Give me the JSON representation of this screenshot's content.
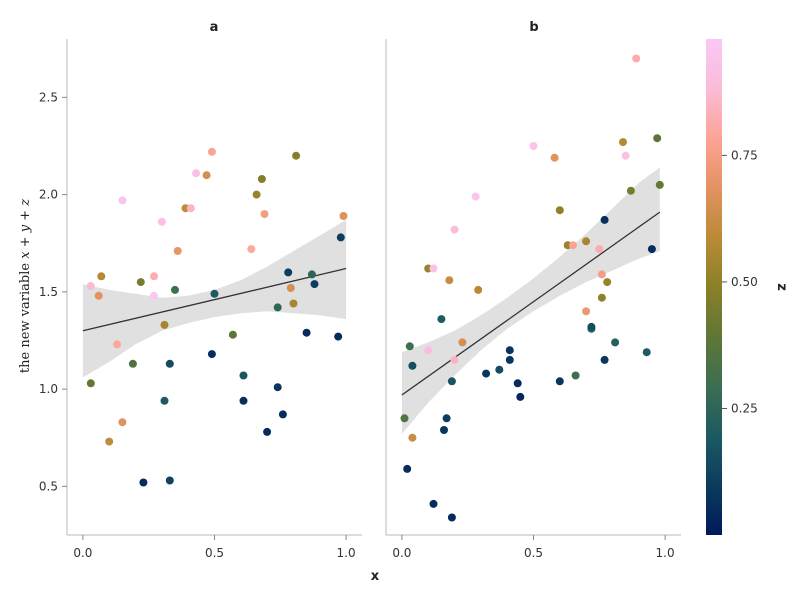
{
  "chart_data": {
    "type": "scatter",
    "xlabel": "x",
    "ylabel_prefix": "the new variable ",
    "ylabel_math": "x + y + z",
    "xlim": [
      -0.03,
      1.03
    ],
    "ylim": [
      0.25,
      2.8
    ],
    "xticks": [
      0.0,
      0.5,
      1.0
    ],
    "xtick_labels": [
      "0.0",
      "0.5",
      "1.0"
    ],
    "yticks": [
      0.5,
      1.0,
      1.5,
      2.0,
      2.5
    ],
    "ytick_labels": [
      "0.5",
      "1.0",
      "1.5",
      "2.0",
      "2.5"
    ],
    "colorbar": {
      "label": "z",
      "range": [
        0.0,
        0.98
      ],
      "ticks": [
        0.25,
        0.5,
        0.75
      ],
      "tick_labels": [
        "0.25",
        "0.50",
        "0.75"
      ],
      "colormap": "batlow",
      "stops": [
        "#011959",
        "#0b3c5e",
        "#1c5a62",
        "#3c6e52",
        "#5f7736",
        "#8a8028",
        "#bb8a36",
        "#e39262",
        "#fca496",
        "#fbbbd8",
        "#fac8f6"
      ]
    },
    "panels": [
      {
        "title": "a",
        "fit": {
          "x0": 0.0,
          "y0": 1.3,
          "x1": 1.0,
          "y1": 1.62
        },
        "band": [
          {
            "x": 0.0,
            "lo": 1.06,
            "hi": 1.54
          },
          {
            "x": 0.1,
            "lo": 1.14,
            "hi": 1.51
          },
          {
            "x": 0.2,
            "lo": 1.23,
            "hi": 1.49
          },
          {
            "x": 0.3,
            "lo": 1.3,
            "hi": 1.47
          },
          {
            "x": 0.4,
            "lo": 1.34,
            "hi": 1.48
          },
          {
            "x": 0.5,
            "lo": 1.37,
            "hi": 1.51
          },
          {
            "x": 0.6,
            "lo": 1.39,
            "hi": 1.56
          },
          {
            "x": 0.7,
            "lo": 1.4,
            "hi": 1.63
          },
          {
            "x": 0.8,
            "lo": 1.39,
            "hi": 1.71
          },
          {
            "x": 0.9,
            "lo": 1.38,
            "hi": 1.79
          },
          {
            "x": 1.0,
            "lo": 1.36,
            "hi": 1.87
          }
        ],
        "points": [
          {
            "x": 0.03,
            "y": 1.53,
            "z": 0.88
          },
          {
            "x": 0.06,
            "y": 1.48,
            "z": 0.68
          },
          {
            "x": 0.07,
            "y": 1.58,
            "z": 0.58
          },
          {
            "x": 0.03,
            "y": 1.03,
            "z": 0.4
          },
          {
            "x": 0.1,
            "y": 0.73,
            "z": 0.6
          },
          {
            "x": 0.13,
            "y": 1.23,
            "z": 0.8
          },
          {
            "x": 0.15,
            "y": 0.83,
            "z": 0.68
          },
          {
            "x": 0.15,
            "y": 1.97,
            "z": 0.95
          },
          {
            "x": 0.19,
            "y": 1.13,
            "z": 0.35
          },
          {
            "x": 0.22,
            "y": 1.55,
            "z": 0.45
          },
          {
            "x": 0.23,
            "y": 0.52,
            "z": 0.05
          },
          {
            "x": 0.27,
            "y": 1.58,
            "z": 0.82
          },
          {
            "x": 0.27,
            "y": 1.48,
            "z": 0.97
          },
          {
            "x": 0.3,
            "y": 1.86,
            "z": 0.92
          },
          {
            "x": 0.31,
            "y": 0.94,
            "z": 0.2
          },
          {
            "x": 0.31,
            "y": 1.33,
            "z": 0.55
          },
          {
            "x": 0.33,
            "y": 1.13,
            "z": 0.15
          },
          {
            "x": 0.33,
            "y": 0.53,
            "z": 0.12
          },
          {
            "x": 0.35,
            "y": 1.51,
            "z": 0.3
          },
          {
            "x": 0.36,
            "y": 1.71,
            "z": 0.7
          },
          {
            "x": 0.39,
            "y": 1.93,
            "z": 0.6
          },
          {
            "x": 0.41,
            "y": 1.93,
            "z": 0.85
          },
          {
            "x": 0.43,
            "y": 2.11,
            "z": 0.92
          },
          {
            "x": 0.47,
            "y": 2.1,
            "z": 0.65
          },
          {
            "x": 0.49,
            "y": 2.22,
            "z": 0.78
          },
          {
            "x": 0.49,
            "y": 1.18,
            "z": 0.05
          },
          {
            "x": 0.5,
            "y": 1.49,
            "z": 0.2
          },
          {
            "x": 0.57,
            "y": 1.28,
            "z": 0.38
          },
          {
            "x": 0.61,
            "y": 1.07,
            "z": 0.18
          },
          {
            "x": 0.61,
            "y": 0.94,
            "z": 0.06
          },
          {
            "x": 0.64,
            "y": 1.72,
            "z": 0.8
          },
          {
            "x": 0.66,
            "y": 2.0,
            "z": 0.52
          },
          {
            "x": 0.68,
            "y": 2.08,
            "z": 0.48
          },
          {
            "x": 0.69,
            "y": 1.9,
            "z": 0.75
          },
          {
            "x": 0.7,
            "y": 0.78,
            "z": 0.05
          },
          {
            "x": 0.74,
            "y": 1.42,
            "z": 0.25
          },
          {
            "x": 0.74,
            "y": 1.01,
            "z": 0.08
          },
          {
            "x": 0.76,
            "y": 0.87,
            "z": 0.05
          },
          {
            "x": 0.78,
            "y": 1.6,
            "z": 0.1
          },
          {
            "x": 0.79,
            "y": 1.52,
            "z": 0.65
          },
          {
            "x": 0.8,
            "y": 1.44,
            "z": 0.55
          },
          {
            "x": 0.81,
            "y": 2.2,
            "z": 0.48
          },
          {
            "x": 0.85,
            "y": 1.29,
            "z": 0.05
          },
          {
            "x": 0.87,
            "y": 1.59,
            "z": 0.25
          },
          {
            "x": 0.88,
            "y": 1.54,
            "z": 0.1
          },
          {
            "x": 0.97,
            "y": 1.27,
            "z": 0.05
          },
          {
            "x": 0.98,
            "y": 1.78,
            "z": 0.1
          },
          {
            "x": 0.99,
            "y": 1.89,
            "z": 0.68
          }
        ]
      },
      {
        "title": "b",
        "fit": {
          "x0": 0.0,
          "y0": 0.97,
          "x1": 0.98,
          "y1": 1.91
        },
        "band": [
          {
            "x": 0.0,
            "lo": 0.77,
            "hi": 1.19
          },
          {
            "x": 0.1,
            "lo": 0.93,
            "hi": 1.24
          },
          {
            "x": 0.2,
            "lo": 1.07,
            "hi": 1.3
          },
          {
            "x": 0.3,
            "lo": 1.2,
            "hi": 1.38
          },
          {
            "x": 0.4,
            "lo": 1.31,
            "hi": 1.47
          },
          {
            "x": 0.5,
            "lo": 1.4,
            "hi": 1.57
          },
          {
            "x": 0.6,
            "lo": 1.48,
            "hi": 1.68
          },
          {
            "x": 0.7,
            "lo": 1.55,
            "hi": 1.8
          },
          {
            "x": 0.8,
            "lo": 1.61,
            "hi": 1.93
          },
          {
            "x": 0.9,
            "lo": 1.67,
            "hi": 2.06
          },
          {
            "x": 0.98,
            "lo": 1.71,
            "hi": 2.14
          }
        ],
        "points": [
          {
            "x": 0.01,
            "y": 0.85,
            "z": 0.35
          },
          {
            "x": 0.02,
            "y": 0.59,
            "z": 0.05
          },
          {
            "x": 0.03,
            "y": 1.22,
            "z": 0.3
          },
          {
            "x": 0.04,
            "y": 1.12,
            "z": 0.15
          },
          {
            "x": 0.04,
            "y": 0.75,
            "z": 0.62
          },
          {
            "x": 0.1,
            "y": 1.62,
            "z": 0.52
          },
          {
            "x": 0.1,
            "y": 1.2,
            "z": 0.9
          },
          {
            "x": 0.12,
            "y": 1.62,
            "z": 0.92
          },
          {
            "x": 0.12,
            "y": 0.41,
            "z": 0.05
          },
          {
            "x": 0.15,
            "y": 1.36,
            "z": 0.2
          },
          {
            "x": 0.16,
            "y": 0.79,
            "z": 0.08
          },
          {
            "x": 0.17,
            "y": 0.85,
            "z": 0.1
          },
          {
            "x": 0.18,
            "y": 1.56,
            "z": 0.62
          },
          {
            "x": 0.19,
            "y": 1.04,
            "z": 0.18
          },
          {
            "x": 0.19,
            "y": 0.34,
            "z": 0.05
          },
          {
            "x": 0.2,
            "y": 1.82,
            "z": 0.9
          },
          {
            "x": 0.2,
            "y": 1.15,
            "z": 0.85
          },
          {
            "x": 0.23,
            "y": 1.24,
            "z": 0.65
          },
          {
            "x": 0.28,
            "y": 1.99,
            "z": 0.95
          },
          {
            "x": 0.29,
            "y": 1.51,
            "z": 0.58
          },
          {
            "x": 0.32,
            "y": 1.08,
            "z": 0.08
          },
          {
            "x": 0.37,
            "y": 1.1,
            "z": 0.15
          },
          {
            "x": 0.41,
            "y": 1.2,
            "z": 0.08
          },
          {
            "x": 0.41,
            "y": 1.15,
            "z": 0.08
          },
          {
            "x": 0.44,
            "y": 1.03,
            "z": 0.05
          },
          {
            "x": 0.45,
            "y": 0.96,
            "z": 0.04
          },
          {
            "x": 0.5,
            "y": 2.25,
            "z": 0.95
          },
          {
            "x": 0.58,
            "y": 2.19,
            "z": 0.68
          },
          {
            "x": 0.6,
            "y": 1.92,
            "z": 0.5
          },
          {
            "x": 0.6,
            "y": 1.04,
            "z": 0.08
          },
          {
            "x": 0.63,
            "y": 1.74,
            "z": 0.52
          },
          {
            "x": 0.65,
            "y": 1.74,
            "z": 0.78
          },
          {
            "x": 0.66,
            "y": 1.07,
            "z": 0.3
          },
          {
            "x": 0.7,
            "y": 1.76,
            "z": 0.55
          },
          {
            "x": 0.7,
            "y": 1.4,
            "z": 0.72
          },
          {
            "x": 0.72,
            "y": 1.31,
            "z": 0.25
          },
          {
            "x": 0.72,
            "y": 1.32,
            "z": 0.15
          },
          {
            "x": 0.75,
            "y": 1.72,
            "z": 0.82
          },
          {
            "x": 0.76,
            "y": 1.59,
            "z": 0.75
          },
          {
            "x": 0.76,
            "y": 1.47,
            "z": 0.5
          },
          {
            "x": 0.77,
            "y": 1.87,
            "z": 0.06
          },
          {
            "x": 0.77,
            "y": 1.15,
            "z": 0.08
          },
          {
            "x": 0.78,
            "y": 1.55,
            "z": 0.52
          },
          {
            "x": 0.81,
            "y": 1.24,
            "z": 0.22
          },
          {
            "x": 0.84,
            "y": 2.27,
            "z": 0.58
          },
          {
            "x": 0.85,
            "y": 2.2,
            "z": 0.92
          },
          {
            "x": 0.87,
            "y": 2.02,
            "z": 0.45
          },
          {
            "x": 0.89,
            "y": 2.7,
            "z": 0.82
          },
          {
            "x": 0.93,
            "y": 1.19,
            "z": 0.2
          },
          {
            "x": 0.95,
            "y": 1.72,
            "z": 0.05
          },
          {
            "x": 0.97,
            "y": 2.29,
            "z": 0.38
          },
          {
            "x": 0.98,
            "y": 2.05,
            "z": 0.4
          }
        ]
      }
    ]
  }
}
